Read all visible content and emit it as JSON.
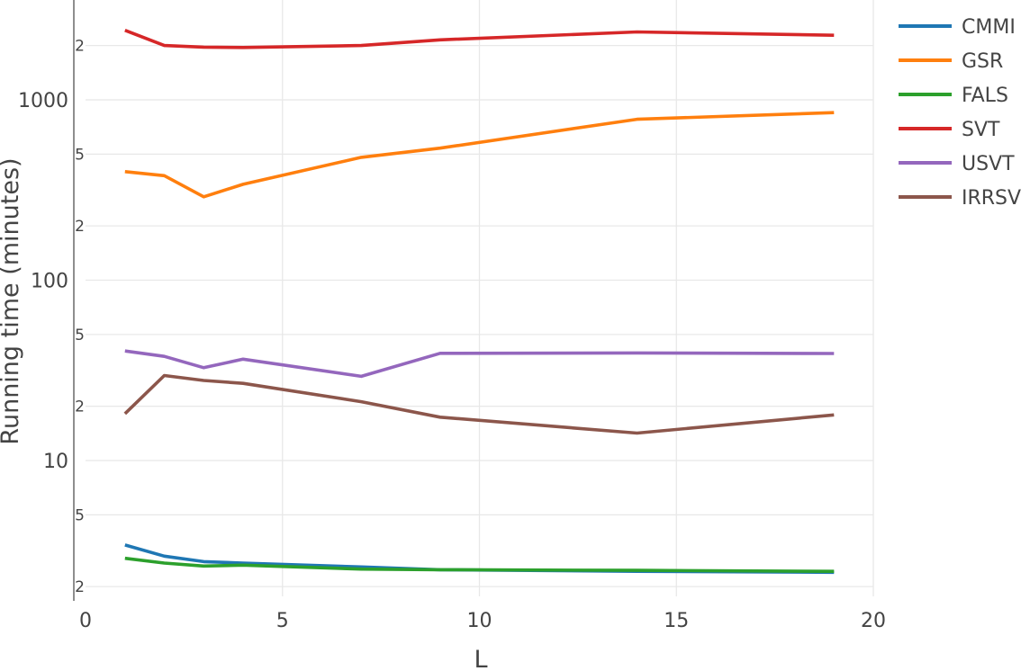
{
  "chart_data": {
    "type": "line",
    "title": "",
    "xlabel": "L",
    "ylabel": "Running time (minutes)",
    "x_range": [
      0,
      20
    ],
    "x_ticks": [
      0,
      5,
      10,
      15,
      20
    ],
    "y_scale": "log",
    "y_range": [
      1.8,
      3700
    ],
    "y_major_ticks": [
      {
        "value": 10,
        "label": "10"
      },
      {
        "value": 100,
        "label": "100"
      },
      {
        "value": 1000,
        "label": "1000"
      }
    ],
    "y_minor_ticks": [
      {
        "value": 2,
        "label": "2"
      },
      {
        "value": 5,
        "label": "5"
      },
      {
        "value": 20,
        "label": "2"
      },
      {
        "value": 50,
        "label": "5"
      },
      {
        "value": 200,
        "label": "2"
      },
      {
        "value": 500,
        "label": "5"
      },
      {
        "value": 2000,
        "label": "2"
      }
    ],
    "grid": true,
    "legend_position": "top-right",
    "x": [
      1,
      2,
      3,
      4,
      7,
      9,
      14,
      19
    ],
    "series": [
      {
        "name": "CMMI",
        "color": "#1f77b4",
        "values": [
          3.4,
          2.95,
          2.75,
          2.7,
          2.57,
          2.48,
          2.43,
          2.4
        ]
      },
      {
        "name": "GSR",
        "color": "#ff7f0e",
        "values": [
          400,
          380,
          290,
          340,
          480,
          540,
          780,
          850
        ]
      },
      {
        "name": "FALS",
        "color": "#2ca02c",
        "values": [
          2.87,
          2.7,
          2.6,
          2.63,
          2.5,
          2.48,
          2.46,
          2.43
        ]
      },
      {
        "name": "SVT",
        "color": "#d62728",
        "values": [
          2430,
          2000,
          1960,
          1950,
          2000,
          2150,
          2380,
          2280
        ]
      },
      {
        "name": "USVT",
        "color": "#9467bd",
        "values": [
          40.5,
          37.8,
          32.7,
          36.5,
          29.3,
          39.3,
          39.5,
          39.2
        ]
      },
      {
        "name": "IRRSV",
        "color": "#8c564b",
        "values": [
          18.2,
          29.6,
          27.8,
          26.8,
          21.2,
          17.4,
          14.2,
          17.9
        ]
      }
    ]
  }
}
